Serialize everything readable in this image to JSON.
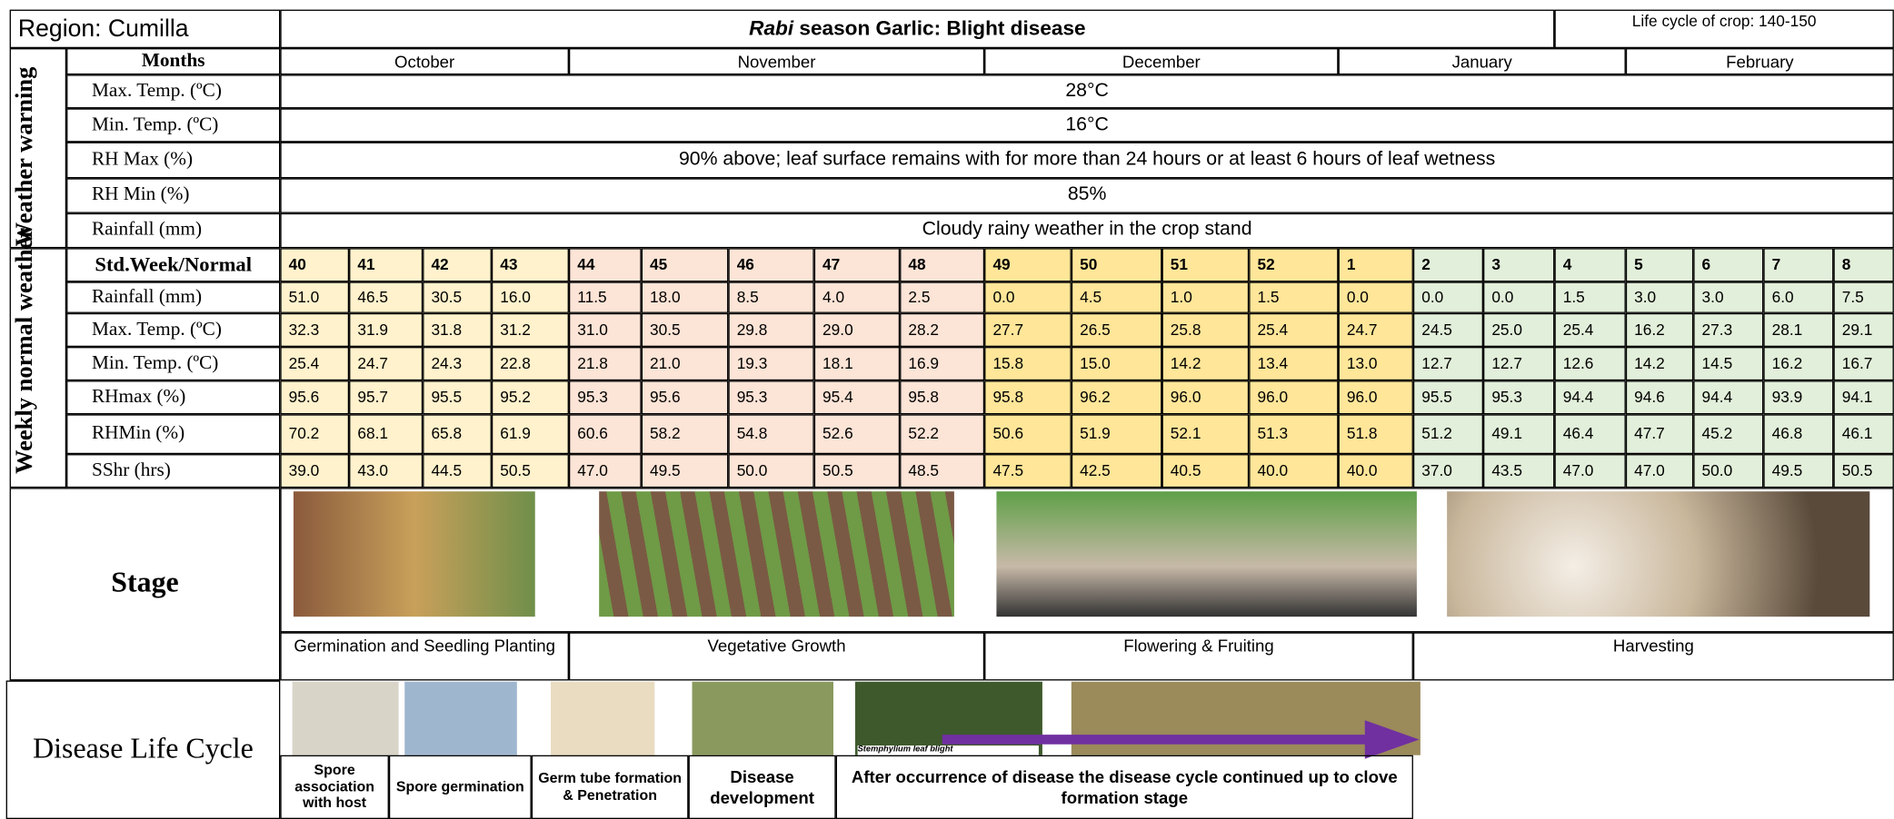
{
  "header": {
    "region": "Region: Cumilla",
    "title_italic": "Rabi",
    "title_rest": " season Garlic: Blight disease",
    "life_cycle": "Life cycle of crop: 140-150"
  },
  "months_label": "Months",
  "months": [
    "October",
    "November",
    "December",
    "January",
    "February"
  ],
  "weather_warning": {
    "group_label": "Weather warning",
    "rows": [
      {
        "label": "Max. Temp. (ºC)",
        "value": "28°C"
      },
      {
        "label": "Min. Temp. (ºC)",
        "value": "16°C"
      },
      {
        "label": "RH Max (%)",
        "value": "90% above; leaf surface remains with for more than 24 hours or at least 6 hours of leaf wetness"
      },
      {
        "label": "RH Min (%)",
        "value": "85%"
      },
      {
        "label": "Rainfall (mm)",
        "value": "Cloudy rainy weather in the crop stand"
      }
    ]
  },
  "weekly_normal": {
    "group_label": "Weekly normal weather",
    "header_label": "Std.Week/Normal",
    "weeks": [
      "40",
      "41",
      "42",
      "43",
      "44",
      "45",
      "46",
      "47",
      "48",
      "49",
      "50",
      "51",
      "52",
      "1",
      "2",
      "3",
      "4",
      "5",
      "6",
      "7",
      "8"
    ],
    "rows": [
      {
        "label": "Rainfall (mm)",
        "values": [
          "51.0",
          "46.5",
          "30.5",
          "16.0",
          "11.5",
          "18.0",
          "8.5",
          "4.0",
          "2.5",
          "0.0",
          "4.5",
          "1.0",
          "1.5",
          "0.0",
          "0.0",
          "0.0",
          "1.5",
          "3.0",
          "3.0",
          "6.0",
          "7.5"
        ]
      },
      {
        "label": "Max. Temp. (ºC)",
        "values": [
          "32.3",
          "31.9",
          "31.8",
          "31.2",
          "31.0",
          "30.5",
          "29.8",
          "29.0",
          "28.2",
          "27.7",
          "26.5",
          "25.8",
          "25.4",
          "24.7",
          "24.5",
          "25.0",
          "25.4",
          "16.2",
          "27.3",
          "28.1",
          "29.1"
        ]
      },
      {
        "label": "Min. Temp. (ºC)",
        "values": [
          "25.4",
          "24.7",
          "24.3",
          "22.8",
          "21.8",
          "21.0",
          "19.3",
          "18.1",
          "16.9",
          "15.8",
          "15.0",
          "14.2",
          "13.4",
          "13.0",
          "12.7",
          "12.7",
          "12.6",
          "14.2",
          "14.5",
          "16.2",
          "16.7"
        ]
      },
      {
        "label": "RHmax (%)",
        "values": [
          "95.6",
          "95.7",
          "95.5",
          "95.2",
          "95.3",
          "95.6",
          "95.3",
          "95.4",
          "95.8",
          "95.8",
          "96.2",
          "96.0",
          "96.0",
          "96.0",
          "95.5",
          "95.3",
          "94.4",
          "94.6",
          "94.4",
          "93.9",
          "94.1"
        ]
      },
      {
        "label": "RHMin (%)",
        "values": [
          "70.2",
          "68.1",
          "65.8",
          "61.9",
          "60.6",
          "58.2",
          "54.8",
          "52.6",
          "52.2",
          "50.6",
          "51.9",
          "52.1",
          "51.3",
          "51.8",
          "51.2",
          "49.1",
          "46.4",
          "47.7",
          "45.2",
          "46.8",
          "46.1"
        ]
      },
      {
        "label": "SShr (hrs)",
        "values": [
          "39.0",
          "43.0",
          "44.5",
          "50.5",
          "47.0",
          "49.5",
          "50.0",
          "50.5",
          "48.5",
          "47.5",
          "42.5",
          "40.5",
          "40.0",
          "40.0",
          "37.0",
          "43.5",
          "47.0",
          "47.0",
          "50.0",
          "49.5",
          "50.5"
        ]
      }
    ]
  },
  "stage": {
    "label": "Stage",
    "stages": [
      "Germination and Seedling Planting",
      "Vegetative Growth",
      "Flowering & Fruiting",
      "Harvesting"
    ]
  },
  "disease_life_cycle": {
    "label": "Disease Life Cycle",
    "image_caption": "Stemphylium leaf blight",
    "steps": [
      "Spore association with host",
      "Spore germination",
      "Germ tube formation & Penetration",
      "Disease development",
      "After occurrence of disease the disease cycle continued up to clove formation stage"
    ]
  }
}
